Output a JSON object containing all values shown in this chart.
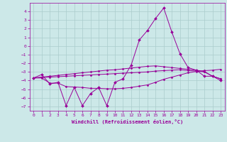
{
  "x": [
    0,
    1,
    2,
    3,
    4,
    5,
    6,
    7,
    8,
    9,
    10,
    11,
    12,
    13,
    14,
    15,
    16,
    17,
    18,
    19,
    20,
    21,
    22,
    23
  ],
  "main_y": [
    -3.7,
    -3.3,
    -4.4,
    -4.2,
    -6.9,
    -4.8,
    -6.9,
    -5.5,
    -4.8,
    -6.9,
    -4.2,
    -3.8,
    -2.2,
    0.7,
    1.8,
    3.2,
    4.4,
    1.6,
    -0.9,
    -2.5,
    -2.8,
    -3.5,
    -3.5,
    -4.0
  ],
  "line2_y": [
    -3.7,
    -3.7,
    -4.3,
    -4.3,
    -4.7,
    -4.75,
    -4.8,
    -4.9,
    -4.9,
    -4.95,
    -4.95,
    -4.9,
    -4.8,
    -4.65,
    -4.5,
    -4.2,
    -3.85,
    -3.6,
    -3.35,
    -3.1,
    -2.95,
    -2.85,
    -2.8,
    -2.7
  ],
  "line3_y": [
    -3.7,
    -3.6,
    -3.5,
    -3.4,
    -3.3,
    -3.2,
    -3.1,
    -3.0,
    -2.9,
    -2.8,
    -2.75,
    -2.65,
    -2.55,
    -2.45,
    -2.35,
    -2.3,
    -2.4,
    -2.5,
    -2.6,
    -2.7,
    -2.8,
    -2.95,
    -3.5,
    -3.8
  ],
  "line4_y": [
    -3.7,
    -3.65,
    -3.6,
    -3.55,
    -3.5,
    -3.45,
    -3.4,
    -3.35,
    -3.3,
    -3.25,
    -3.2,
    -3.15,
    -3.1,
    -3.05,
    -3.0,
    -2.9,
    -2.85,
    -2.8,
    -2.75,
    -2.85,
    -2.9,
    -3.0,
    -3.5,
    -3.8
  ],
  "color": "#990099",
  "bg_color": "#cce8e8",
  "grid_color": "#aacccc",
  "xlabel": "Windchill (Refroidissement éolien,°C)",
  "ylim": [
    -7.5,
    5.0
  ],
  "xlim": [
    -0.5,
    23.5
  ],
  "yticks": [
    -7,
    -6,
    -5,
    -4,
    -3,
    -2,
    -1,
    0,
    1,
    2,
    3,
    4
  ],
  "xticks": [
    0,
    1,
    2,
    3,
    4,
    5,
    6,
    7,
    8,
    9,
    10,
    11,
    12,
    13,
    14,
    15,
    16,
    17,
    18,
    19,
    20,
    21,
    22,
    23
  ]
}
